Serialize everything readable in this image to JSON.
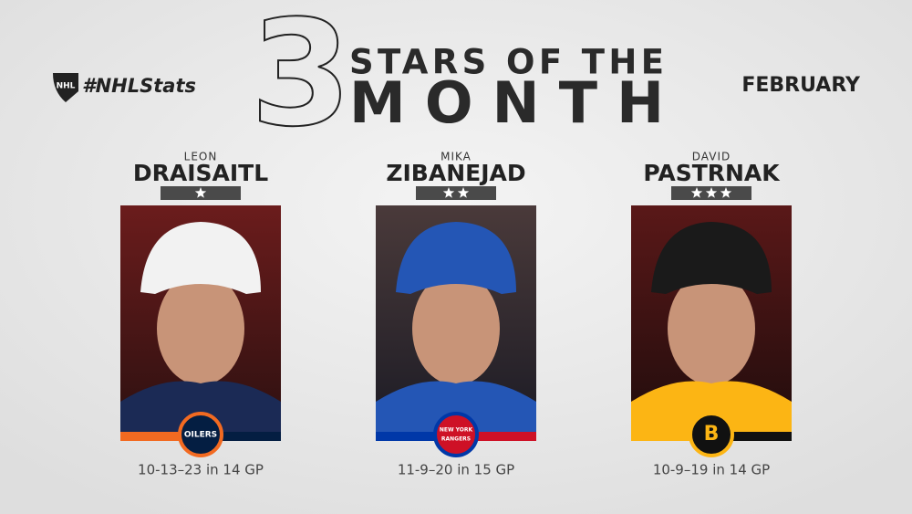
{
  "header": {
    "hashtag": "#NHLStats",
    "big_number": "3",
    "title_line1": "STARS OF THE",
    "title_line2": "MONTH",
    "month": "FEBRUARY",
    "league_logo": "NHL"
  },
  "players": [
    {
      "first_name": "LEON",
      "last_name": "DRAISAITL",
      "stars": 1,
      "team_logo": [
        "OILERS"
      ],
      "stats": "10-13–23 in 14 GP"
    },
    {
      "first_name": "MIKA",
      "last_name": "ZIBANEJAD",
      "stars": 2,
      "team_logo": [
        "NEW YORK",
        "RANGERS"
      ],
      "stats": "11-9–20 in 15 GP"
    },
    {
      "first_name": "DAVID",
      "last_name": "PASTRNAK",
      "stars": 3,
      "team_logo": [
        "B"
      ],
      "stats": "10-9–19 in 14 GP"
    }
  ]
}
